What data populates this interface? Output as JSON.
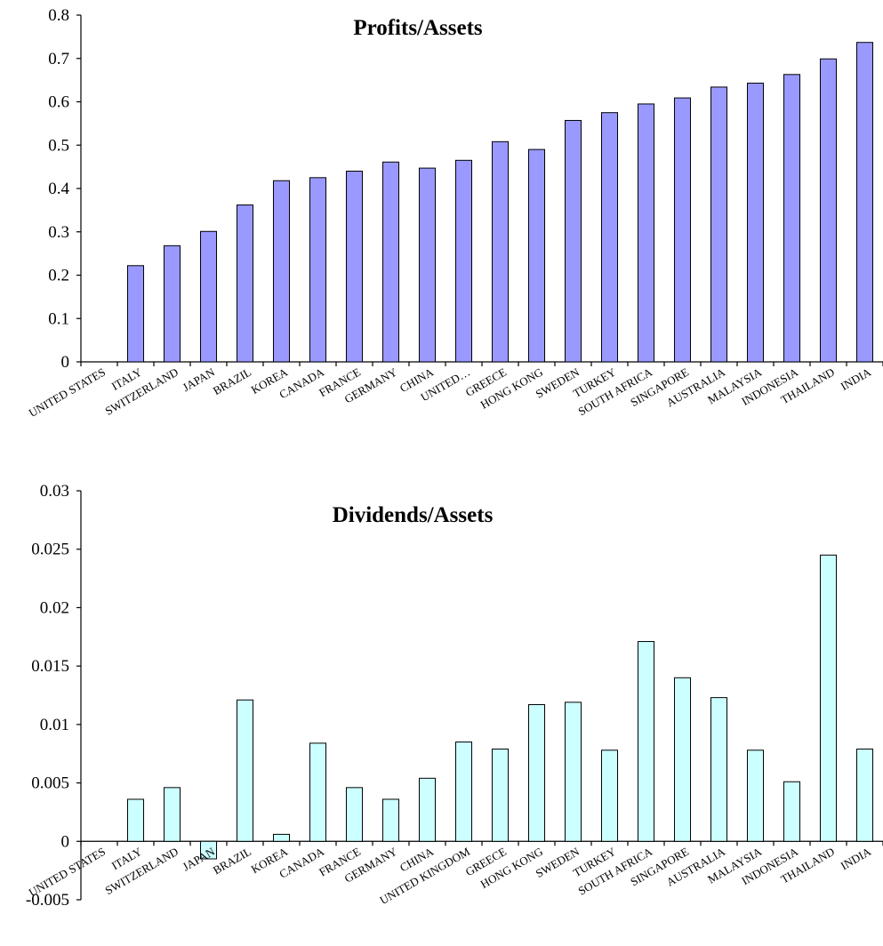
{
  "chart_data": [
    {
      "type": "bar",
      "title": "Profits/Assets",
      "xlabel": "",
      "ylabel": "",
      "ylim": [
        0,
        0.8
      ],
      "yticks": [
        "0",
        "0.1",
        "0.2",
        "0.3",
        "0.4",
        "0.5",
        "0.6",
        "0.7",
        "0.8"
      ],
      "grid": false,
      "bar_color": "#9999ff",
      "categories": [
        "UNITED STATES",
        "ITALY",
        "SWITZERLAND",
        "JAPAN",
        "BRAZIL",
        "KOREA",
        "CANADA",
        "FRANCE",
        "GERMANY",
        "CHINA",
        "UNITED…",
        "GREECE",
        "HONG KONG",
        "SWEDEN",
        "TURKEY",
        "SOUTH AFRICA",
        "SINGAPORE",
        "AUSTRALIA",
        "MALAYSIA",
        "INDONESIA",
        "THAILAND",
        "INDIA"
      ],
      "values": [
        0,
        0.222,
        0.268,
        0.301,
        0.362,
        0.418,
        0.425,
        0.44,
        0.461,
        0.447,
        0.465,
        0.508,
        0.49,
        0.557,
        0.575,
        0.595,
        0.609,
        0.634,
        0.643,
        0.663,
        0.699,
        0.737
      ]
    },
    {
      "type": "bar",
      "title": "Dividends/Assets",
      "xlabel": "",
      "ylabel": "",
      "ylim": [
        -0.005,
        0.03
      ],
      "yticks": [
        "-0.005",
        "0",
        "0.005",
        "0.01",
        "0.015",
        "0.02",
        "0.025",
        "0.03"
      ],
      "grid": false,
      "bar_color": "#ccffff",
      "categories": [
        "UNITED STATES",
        "ITALY",
        "SWITZERLAND",
        "JAPAN",
        "BRAZIL",
        "KOREA",
        "CANADA",
        "FRANCE",
        "GERMANY",
        "CHINA",
        "UNITED KINGDOM",
        "GREECE",
        "HONG KONG",
        "SWEDEN",
        "TURKEY",
        "SOUTH AFRICA",
        "SINGAPORE",
        "AUSTRALIA",
        "MALAYSIA",
        "INDONESIA",
        "THAILAND",
        "INDIA"
      ],
      "values": [
        0,
        0.0036,
        0.0046,
        -0.0015,
        0.0121,
        0.0006,
        0.0084,
        0.0046,
        0.0036,
        0.0054,
        0.0085,
        0.0079,
        0.0117,
        0.0119,
        0.0078,
        0.0171,
        0.014,
        0.0123,
        0.0078,
        0.0051,
        0.0245,
        0.0079
      ]
    }
  ]
}
